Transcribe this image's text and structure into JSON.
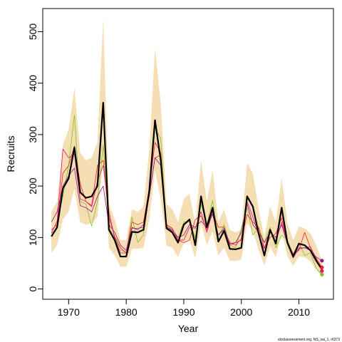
{
  "chart_data": {
    "type": "line",
    "title": "",
    "xlabel": "Year",
    "ylabel": "Recruits",
    "xlim": [
      1965.5,
      2016
    ],
    "ylim": [
      -20,
      545
    ],
    "x_ticks": [
      1970,
      1980,
      1990,
      2000,
      2010
    ],
    "y_ticks": [
      0,
      100,
      200,
      300,
      400,
      500
    ],
    "grid": false,
    "legend": "none",
    "credit": "stockassessment.org, NS_sai_1, r6373",
    "x": [
      1967,
      1968,
      1969,
      1970,
      1971,
      1972,
      1973,
      1974,
      1975,
      1976,
      1977,
      1978,
      1979,
      1980,
      1981,
      1982,
      1983,
      1984,
      1985,
      1986,
      1987,
      1988,
      1989,
      1990,
      1991,
      1992,
      1993,
      1994,
      1995,
      1996,
      1997,
      1998,
      1999,
      2000,
      2001,
      2002,
      2003,
      2004,
      2005,
      2006,
      2007,
      2008,
      2009,
      2010,
      2011,
      2012,
      2013,
      2014
    ],
    "series": [
      {
        "role": "estimate",
        "color": "#000000",
        "values": [
          102,
          120,
          195,
          215,
          275,
          188,
          177,
          180,
          200,
          362,
          115,
          95,
          63,
          63,
          111,
          110,
          115,
          190,
          328,
          250,
          118,
          110,
          90,
          125,
          135,
          85,
          180,
          120,
          158,
          92,
          113,
          78,
          77,
          80,
          180,
          160,
          108,
          65,
          115,
          88,
          158,
          90,
          63,
          88,
          85,
          75,
          55,
          38
        ]
      },
      {
        "role": "confidence-band",
        "color": "#f5deb3",
        "upper": [
          150,
          170,
          280,
          310,
          390,
          265,
          250,
          255,
          285,
          525,
          165,
          135,
          95,
          95,
          155,
          150,
          160,
          270,
          468,
          360,
          165,
          155,
          130,
          175,
          185,
          125,
          250,
          170,
          230,
          130,
          155,
          115,
          110,
          115,
          245,
          225,
          155,
          100,
          160,
          130,
          215,
          130,
          95,
          122,
          118,
          108,
          85,
          55
        ],
        "lower": [
          70,
          85,
          135,
          150,
          195,
          130,
          125,
          128,
          140,
          250,
          80,
          65,
          43,
          43,
          78,
          78,
          80,
          135,
          230,
          175,
          84,
          80,
          62,
          88,
          95,
          60,
          128,
          85,
          112,
          65,
          80,
          55,
          54,
          57,
          128,
          112,
          76,
          45,
          82,
          62,
          112,
          64,
          45,
          63,
          62,
          53,
          38,
          25
        ]
      },
      {
        "role": "retro-peel",
        "color": "#7fc31c",
        "values": [
          110,
          130,
          180,
          240,
          338,
          170,
          165,
          122,
          170,
          280,
          120,
          100,
          75,
          72,
          140,
          90,
          105,
          200,
          312,
          292,
          125,
          115,
          100,
          130,
          130,
          100,
          165,
          125,
          172,
          100,
          125,
          85,
          80,
          118,
          158,
          105,
          118,
          90,
          120,
          80,
          105,
          95,
          68,
          90,
          65,
          70,
          40,
          28
        ]
      },
      {
        "role": "retro-peel",
        "color": "#ff1a1a",
        "values": [
          115,
          125,
          225,
          240,
          278,
          205,
          170,
          162,
          240,
          250,
          140,
          102,
          80,
          70,
          130,
          125,
          130,
          195,
          285,
          265,
          125,
          118,
          95,
          90,
          95,
          135,
          142,
          115,
          150,
          120,
          120,
          85,
          90,
          95,
          145,
          130,
          120,
          80,
          100,
          108,
          138,
          90,
          68,
          75,
          110,
          80,
          60,
          42
        ]
      },
      {
        "role": "retro-peel",
        "color": "#e0147d",
        "values": [
          108,
          132,
          272,
          255,
          262,
          175,
          170,
          160,
          210,
          240,
          150,
          98,
          70,
          70,
          118,
          118,
          120,
          185,
          255,
          260,
          122,
          112,
          95,
          95,
          120,
          118,
          150,
          110,
          150,
          105,
          115,
          90,
          85,
          98,
          170,
          140,
          105,
          78,
          115,
          92,
          130,
          88,
          60,
          80,
          80,
          82,
          58,
          35
        ]
      },
      {
        "role": "retro-peel",
        "color": "#8b1a89",
        "values": [
          130,
          150,
          200,
          220,
          235,
          162,
          158,
          150,
          180,
          200,
          125,
          110,
          85,
          75,
          120,
          115,
          125,
          180,
          255,
          240,
          120,
          115,
          100,
          105,
          125,
          120,
          132,
          120,
          145,
          105,
          118,
          88,
          90,
          110,
          165,
          125,
          110,
          90,
          110,
          100,
          125,
          88,
          62,
          78,
          80,
          75,
          62,
          55
        ]
      }
    ]
  }
}
